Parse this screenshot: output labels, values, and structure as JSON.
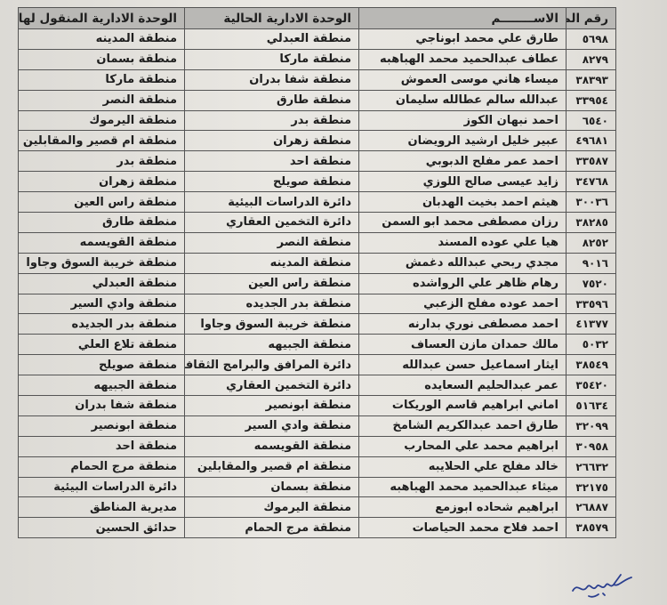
{
  "headers": [
    "رقم الملف",
    "الاســــــــم",
    "الوحدة الادارية الحالية",
    "الوحدة الادارية المنقول لها"
  ],
  "rows": [
    [
      "٥٦٩٨",
      "طارق علي محمد ابوناجي",
      "منطقة العبدلي",
      "منطقة المدينه"
    ],
    [
      "٨٢٧٩",
      "عطاف عبدالحميد محمد الهباهبه",
      "منطقة ماركا",
      "منطقة بسمان"
    ],
    [
      "٣٨٣٩٣",
      "ميساء هاني موسى العموش",
      "منطقة شفا بدران",
      "منطقة ماركا"
    ],
    [
      "٣٣٩٥٤",
      "عبدالله سالم عطالله سليمان",
      "منطقة طارق",
      "منطقة النصر"
    ],
    [
      "٦٥٤٠",
      "احمد نبهان الكوز",
      "منطقة بدر",
      "منطقة اليرموك"
    ],
    [
      "٤٩٦٨١",
      "عبير خليل ارشيد الرويضان",
      "منطقة زهران",
      "منطقة ام قصير والمقابلين"
    ],
    [
      "٣٣٥٨٧",
      "احمد عمر مفلح الدبوبي",
      "منطقة احد",
      "منطقة بدر"
    ],
    [
      "٣٤٧٦٨",
      "زايد عيسى صالح اللوزي",
      "منطقة صويلح",
      "منطقة زهران"
    ],
    [
      "٣٠٠٣٦",
      "هيثم احمد بخيت الهدبان",
      "دائرة الدراسات البيئية",
      "منطقة راس العين"
    ],
    [
      "٣٨٢٨٥",
      "رزان مصطفى محمد ابو السمن",
      "دائرة التخمين العقاري",
      "منطقة طارق"
    ],
    [
      "٨٢٥٢",
      "هيا علي عوده المسند",
      "منطقة النصر",
      "منطقة القويسمه"
    ],
    [
      "٩٠١٦",
      "مجدي ربحي عبدالله دغمش",
      "منطقة المدينه",
      "منطقة خريبة السوق وجاوا"
    ],
    [
      "٧٥٢٠",
      "رهام ظاهر علي الرواشده",
      "منطقة راس العين",
      "منطقة العبدلي"
    ],
    [
      "٣٣٥٩٦",
      "احمد عوده مفلح الزعبي",
      "منطقة بدر الجديده",
      "منطقة وادي السير"
    ],
    [
      "٤١٣٧٧",
      "احمد مصطفى نوري بدارنه",
      "منطقة خريبة السوق وجاوا",
      "منطقة بدر الجديده"
    ],
    [
      "٥٠٣٢",
      "مالك حمدان مازن العساف",
      "منطقة الجبيهه",
      "منطقة تلاع العلي"
    ],
    [
      "٣٨٥٤٩",
      "ايثار اسماعيل حسن عبدالله",
      "دائرة المرافق والبرامج الثقافية",
      "منطقة صويلح"
    ],
    [
      "٣٥٤٢٠",
      "عمر عبدالحليم السعايده",
      "دائرة التخمين العقاري",
      "منطقة الجبيهه"
    ],
    [
      "٥١٦٣٤",
      "اماني ابراهيم قاسم الوريكات",
      "منطقة ابونصير",
      "منطقة شفا بدران"
    ],
    [
      "٣٢٠٩٩",
      "طارق احمد عبدالكريم الشامخ",
      "منطقة وادي السير",
      "منطقة ابونصير"
    ],
    [
      "٣٠٩٥٨",
      "ابراهيم محمد علي المحارب",
      "منطقة القويسمه",
      "منطقة احد"
    ],
    [
      "٢٦٦٣٢",
      "خالد مفلح علي الحلايبه",
      "منطقة ام قصير والمقابلين",
      "منطقة مرج الحمام"
    ],
    [
      "٣٢١٧٥",
      "ميثاء عبدالحميد محمد الهباهبه",
      "منطقة بسمان",
      "دائرة الدراسات البيئية"
    ],
    [
      "٢٦٨٨٧",
      "ابراهيم شحاده ابوزمع",
      "منطقة اليرموك",
      "مديرية المناطق"
    ],
    [
      "٣٨٥٧٩",
      "احمد فلاح محمد الحياصات",
      "منطقة مرج الحمام",
      "حدائق الحسين"
    ]
  ],
  "signature": "العزيزي",
  "colors": {
    "header_bg": "#b9b8b5",
    "ink": "#1e1e1e",
    "signature_ink": "#2b3f8f"
  }
}
